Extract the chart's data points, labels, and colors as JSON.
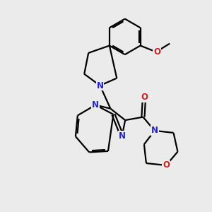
{
  "background_color": "#ebebeb",
  "bond_color": "#000000",
  "N_color": "#2222cc",
  "O_color": "#cc2222",
  "line_width": 1.6,
  "figsize": [
    3.0,
    3.0
  ],
  "dpi": 100,
  "xlim": [
    0,
    10
  ],
  "ylim": [
    0,
    10
  ]
}
